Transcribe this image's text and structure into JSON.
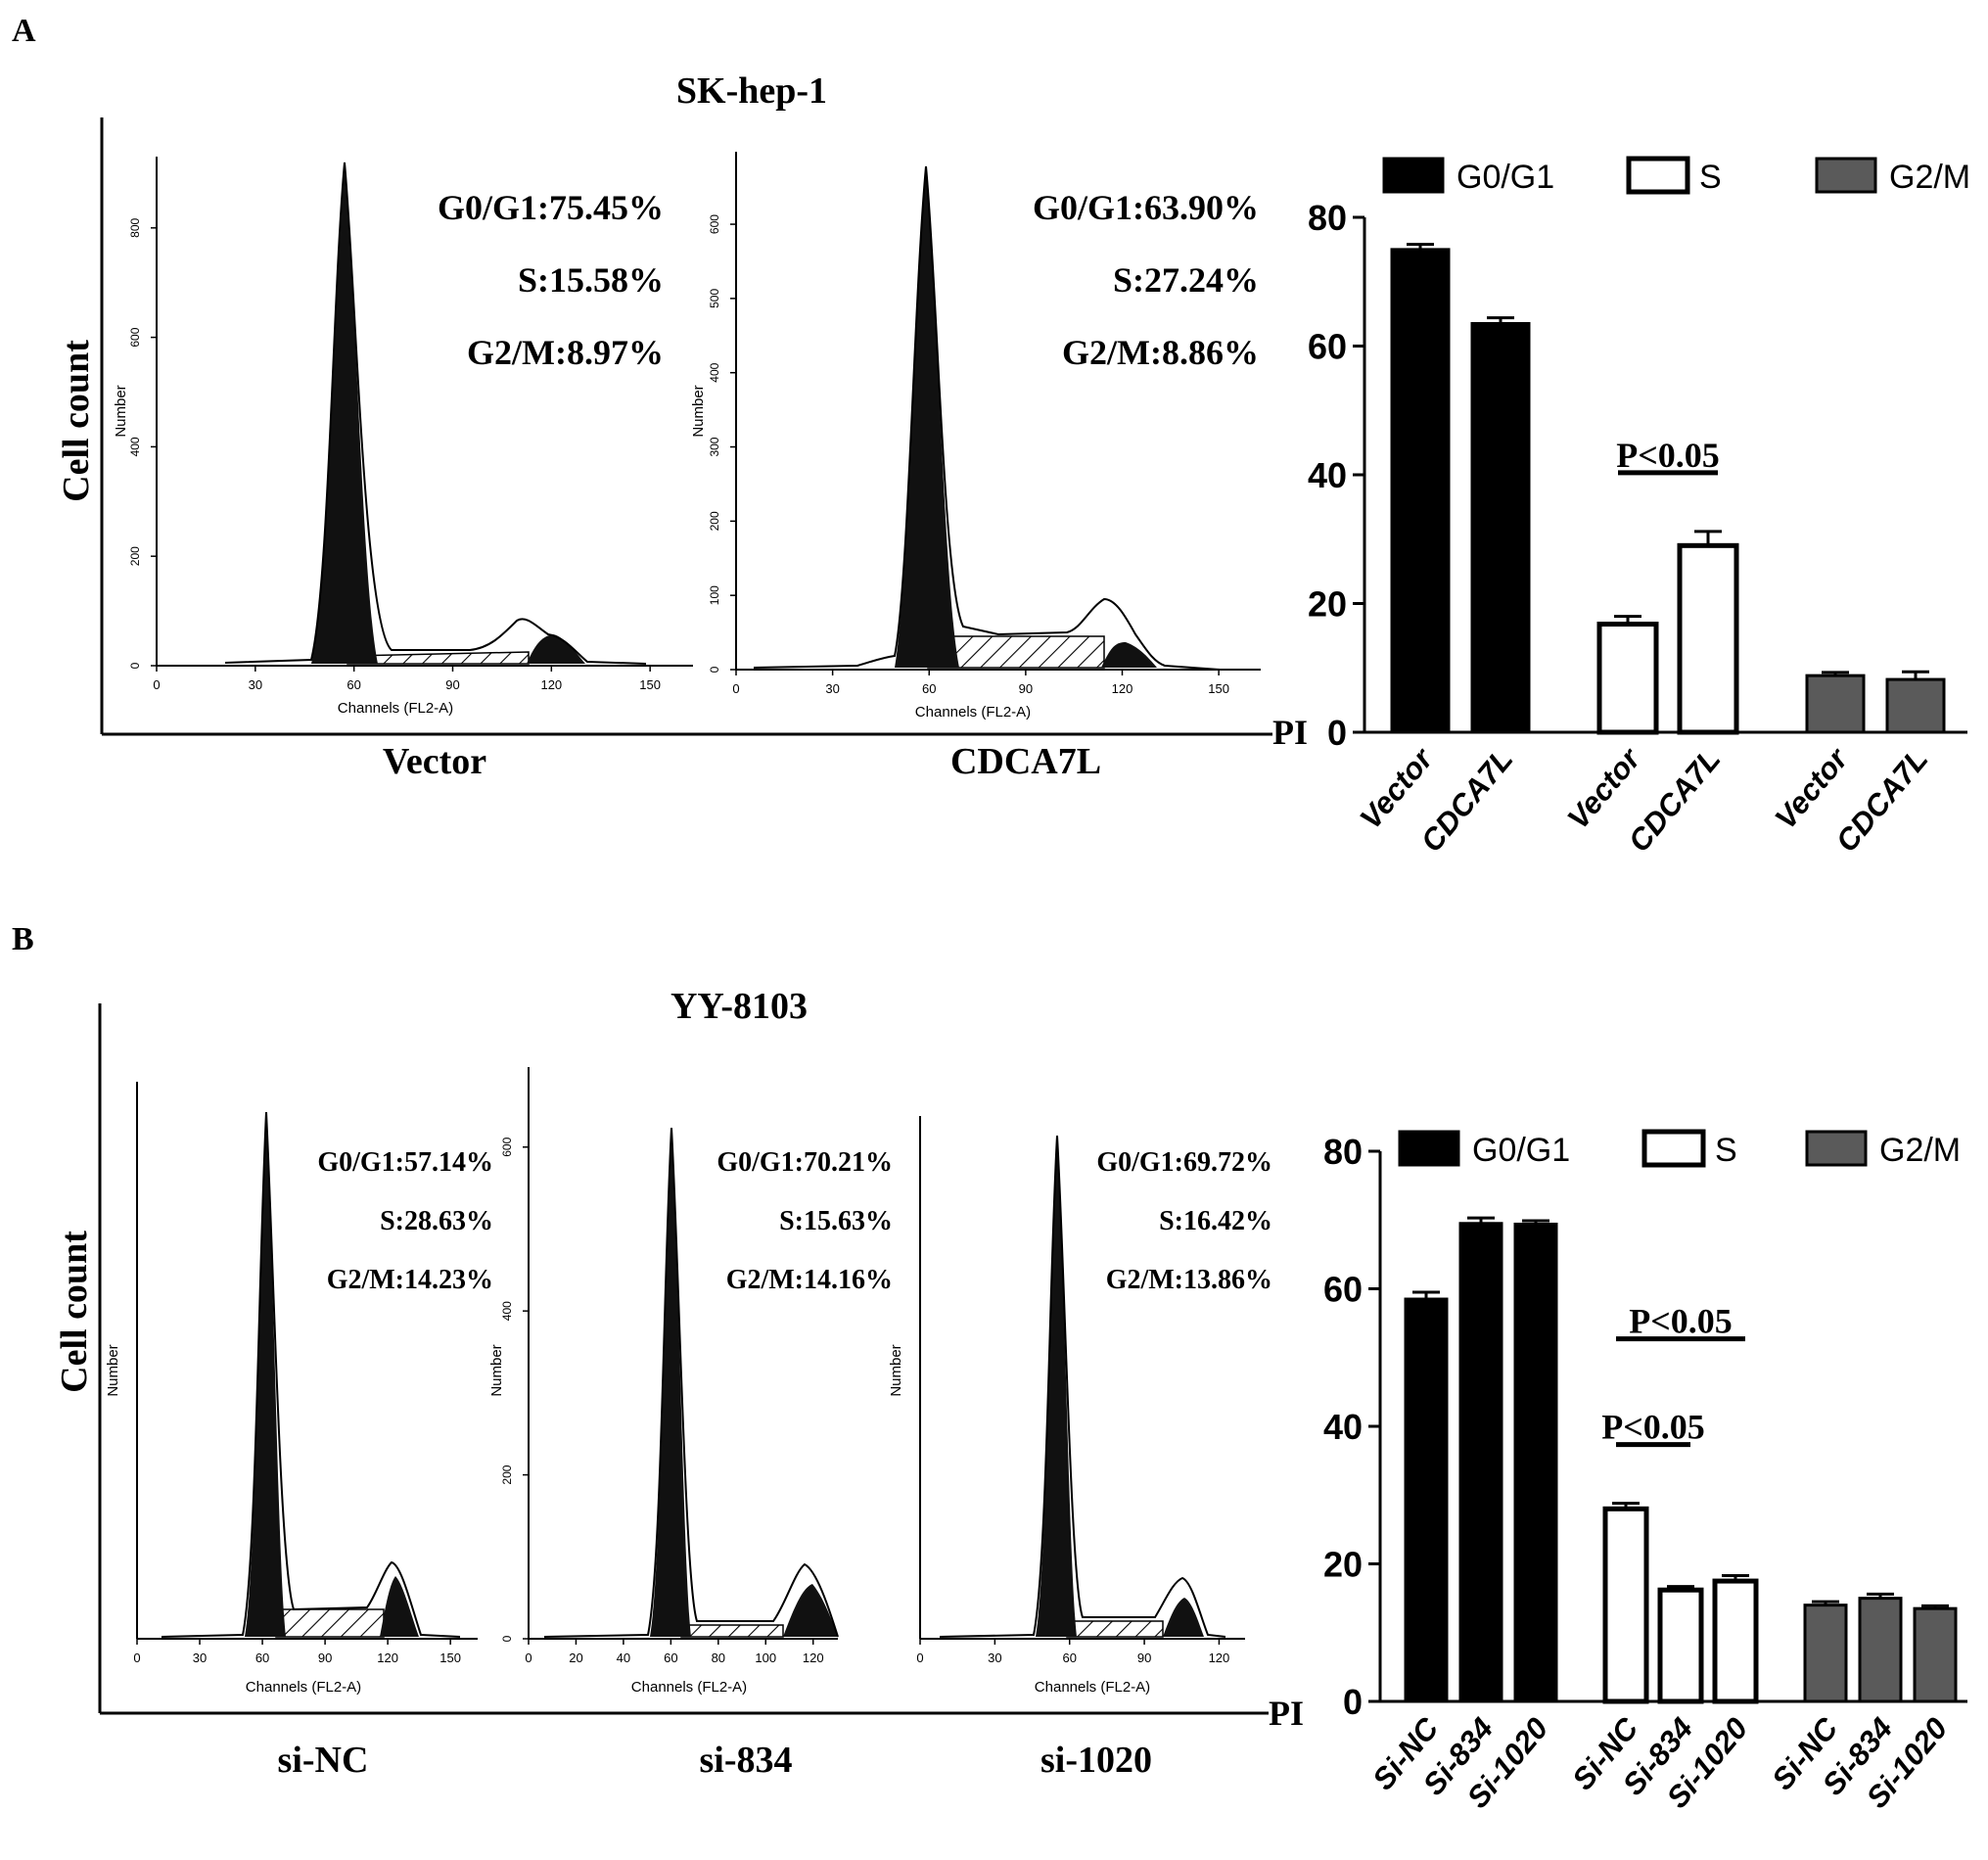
{
  "panels": [
    {
      "letter": "A",
      "cell_line": "SK-hep-1",
      "y_title": "Cell count",
      "x_axis_unit": "PI",
      "histograms": [
        {
          "group": "Vector",
          "tick_labels": [
            "0",
            "30",
            "60",
            "90",
            "120",
            "150"
          ],
          "y_tick_labels": [
            "0",
            "200",
            "400",
            "600",
            "800"
          ],
          "x_axis_title": "Channels (FL2-A)",
          "y_axis_title": "Number",
          "g0g1": "G0/G1:75.45%",
          "s": "S:15.58%",
          "g2m": "G2/M:8.97%"
        },
        {
          "group": "CDCA7L",
          "tick_labels": [
            "0",
            "30",
            "60",
            "90",
            "120",
            "150"
          ],
          "y_tick_labels": [
            "0",
            "100",
            "200",
            "300",
            "400",
            "500",
            "600"
          ],
          "x_axis_title": "Channels (FL2-A)",
          "y_axis_title": "Number",
          "g0g1": "G0/G1:63.90%",
          "s": "S:27.24%",
          "g2m": "G2/M:8.86%"
        }
      ]
    },
    {
      "letter": "B",
      "cell_line": "YY-8103",
      "y_title": "Cell count",
      "x_axis_unit": "PI",
      "histograms": [
        {
          "group": "si-NC",
          "tick_labels": [
            "0",
            "30",
            "60",
            "90",
            "120",
            "150"
          ],
          "y_tick_labels": [],
          "x_axis_title": "Channels (FL2-A)",
          "y_axis_title": "Number",
          "g0g1": "G0/G1:57.14%",
          "s": "S:28.63%",
          "g2m": "G2/M:14.23%"
        },
        {
          "group": "si-834",
          "tick_labels": [
            "0",
            "20",
            "40",
            "60",
            "80",
            "100",
            "120"
          ],
          "y_tick_labels": [
            "0",
            "200",
            "400",
            "600"
          ],
          "x_axis_title": "Channels (FL2-A)",
          "y_axis_title": "Number",
          "g0g1": "G0/G1:70.21%",
          "s": "S:15.63%",
          "g2m": "G2/M:14.16%"
        },
        {
          "group": "si-1020",
          "tick_labels": [
            "0",
            "30",
            "60",
            "90",
            "120"
          ],
          "y_tick_labels": [],
          "x_axis_title": "Channels (FL2-A)",
          "y_axis_title": "Number",
          "g0g1": "G0/G1:69.72%",
          "s": "S:16.42%",
          "g2m": "G2/M:13.86%"
        }
      ]
    }
  ],
  "colors": {
    "g0g1": "#000000",
    "s": "#ffffff",
    "g2m": "#5a5a5a",
    "axis": "#000000"
  },
  "chart_data": [
    {
      "type": "bar",
      "panel": "A",
      "legend": [
        "G0/G1",
        "S",
        "G2/M"
      ],
      "legend_position": "top",
      "groups": [
        "G0/G1",
        "S",
        "G2/M"
      ],
      "categories": [
        "Vector",
        "CDCA7L"
      ],
      "series": [
        {
          "name": "G0/G1",
          "values": [
            75,
            63.5
          ],
          "errors": [
            0.8,
            0.9
          ]
        },
        {
          "name": "S",
          "values": [
            16.8,
            29
          ],
          "errors": [
            1.2,
            2.2
          ]
        },
        {
          "name": "G2/M",
          "values": [
            8.8,
            8.2
          ],
          "errors": [
            0.5,
            1.2
          ]
        }
      ],
      "ylim": [
        0,
        80
      ],
      "yticks": [
        0,
        20,
        40,
        60,
        80
      ],
      "annotations": [
        {
          "text": "P<0.05",
          "group": "S",
          "from": "Vector",
          "to": "CDCA7L"
        }
      ]
    },
    {
      "type": "bar",
      "panel": "B",
      "legend": [
        "G0/G1",
        "S",
        "G2/M"
      ],
      "legend_position": "top",
      "groups": [
        "G0/G1",
        "S",
        "G2/M"
      ],
      "categories": [
        "Si-NC",
        "Si-834",
        "Si-1020"
      ],
      "series": [
        {
          "name": "G0/G1",
          "values": [
            58.5,
            69.5,
            69.4
          ],
          "errors": [
            1.0,
            0.8,
            0.5
          ]
        },
        {
          "name": "S",
          "values": [
            28,
            16.2,
            17.5
          ],
          "errors": [
            0.8,
            0.5,
            0.8
          ]
        },
        {
          "name": "G2/M",
          "values": [
            14,
            15,
            13.5
          ],
          "errors": [
            0.5,
            0.6,
            0.4
          ]
        }
      ],
      "ylim": [
        0,
        80
      ],
      "yticks": [
        0,
        20,
        40,
        60,
        80
      ],
      "annotations": [
        {
          "text": "P<0.05",
          "group": "S",
          "from": "Si-NC",
          "to": "Si-1020"
        },
        {
          "text": "P<0.05",
          "group": "S",
          "from": "Si-NC",
          "to": "Si-834"
        }
      ]
    }
  ]
}
